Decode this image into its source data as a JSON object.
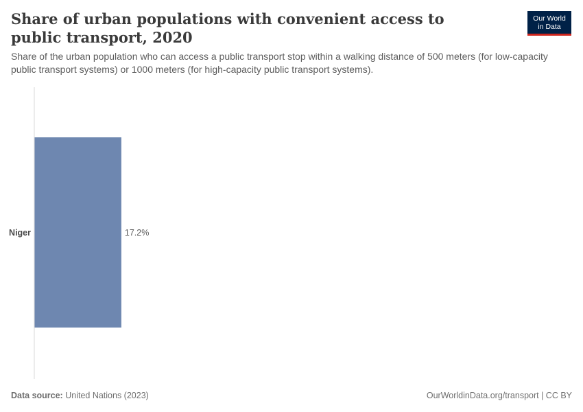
{
  "header": {
    "title": "Share of urban populations with convenient access to public transport, 2020",
    "subtitle": "Share of the urban population who can access a public transport stop within a walking distance of 500 meters (for low-capacity public transport systems) or 1000 meters (for high-capacity public transport systems).",
    "logo_line1": "Our World",
    "logo_line2": "in Data"
  },
  "colors": {
    "bar": "#6e87b0",
    "axis": "#dadada",
    "logo_bg": "#002147",
    "logo_accent": "#ce261e"
  },
  "chart_data": {
    "type": "bar",
    "orientation": "horizontal",
    "categories": [
      "Niger"
    ],
    "values": [
      17.2
    ],
    "value_labels": [
      "17.2%"
    ],
    "xlim": [
      0,
      100
    ],
    "grid": false
  },
  "footer": {
    "source_label": "Data source:",
    "source_value": "United Nations (2023)",
    "url": "OurWorldinData.org/transport | CC BY"
  }
}
